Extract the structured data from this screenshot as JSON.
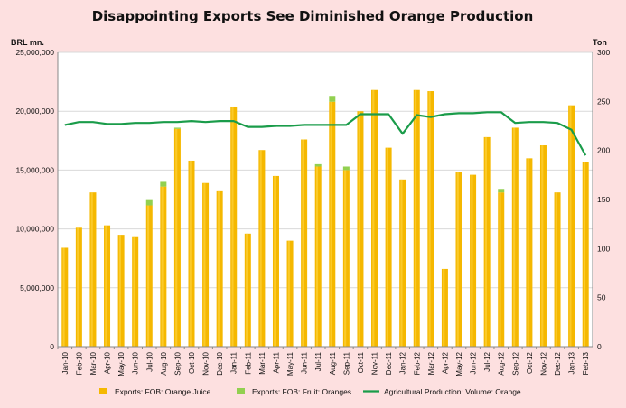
{
  "chart_data": {
    "type": "bar",
    "title": "Disappointing Exports See Diminished Orange Production",
    "ylabel_left": "BRL mn.",
    "ylabel_right": "Ton",
    "ylim_left": [
      0,
      25000000
    ],
    "ylim_right": [
      0,
      300
    ],
    "yticks_left": [
      "0",
      "5,000,000",
      "10,000,000",
      "15,000,000",
      "20,000,000",
      "25,000,000"
    ],
    "yticks_right": [
      "0",
      "50",
      "100",
      "150",
      "200",
      "250",
      "300"
    ],
    "categories": [
      "Jan-10",
      "Feb-10",
      "Mar-10",
      "Apr-10",
      "May-10",
      "Jun-10",
      "Jul-10",
      "Aug-10",
      "Sep-10",
      "Oct-10",
      "Nov-10",
      "Dec-10",
      "Jan-11",
      "Feb-11",
      "Mar-11",
      "Apr-11",
      "May-11",
      "Jun-11",
      "Jul-11",
      "Aug-11",
      "Sep-11",
      "Oct-11",
      "Nov-11",
      "Dec-11",
      "Jan-12",
      "Feb-12",
      "Mar-12",
      "Apr-12",
      "May-12",
      "Jun-12",
      "Jul-12",
      "Aug-12",
      "Sep-12",
      "Oct-12",
      "Nov-12",
      "Dec-12",
      "Jan-13",
      "Feb-13"
    ],
    "series": [
      {
        "name": "Exports: FOB: Orange Juice",
        "type": "bar",
        "axis": "left",
        "color": "#f5b800",
        "highlight": "#ffd84a",
        "values": [
          8400000,
          10100000,
          13100000,
          10300000,
          9500000,
          9300000,
          12000000,
          13600000,
          18500000,
          15800000,
          13900000,
          13200000,
          20400000,
          9600000,
          16700000,
          14500000,
          9000000,
          17600000,
          15300000,
          20800000,
          15000000,
          20000000,
          21800000,
          16900000,
          14200000,
          21800000,
          21700000,
          6600000,
          14800000,
          14600000,
          17800000,
          13100000,
          18600000,
          16000000,
          17100000,
          13100000,
          20500000,
          15700000
        ]
      },
      {
        "name": "Exports: FOB: Fruit: Oranges",
        "type": "bar",
        "axis": "left",
        "stacked": true,
        "color": "#92d050",
        "values": [
          0,
          0,
          0,
          0,
          0,
          0,
          450000,
          400000,
          100000,
          0,
          0,
          0,
          0,
          0,
          0,
          0,
          0,
          0,
          200000,
          500000,
          300000,
          0,
          0,
          0,
          0,
          0,
          0,
          0,
          0,
          0,
          0,
          300000,
          0,
          0,
          0,
          0,
          0,
          0
        ]
      },
      {
        "name": "Agricultural Production: Volume: Orange",
        "type": "line",
        "axis": "right",
        "color": "#1a9c4a",
        "values": [
          226,
          229,
          229,
          227,
          227,
          228,
          228,
          229,
          229,
          230,
          229,
          230,
          230,
          224,
          224,
          225,
          225,
          226,
          226,
          226,
          226,
          237,
          237,
          237,
          217,
          236,
          234,
          237,
          238,
          238,
          239,
          239,
          228,
          229,
          229,
          228,
          221,
          195
        ]
      }
    ]
  }
}
